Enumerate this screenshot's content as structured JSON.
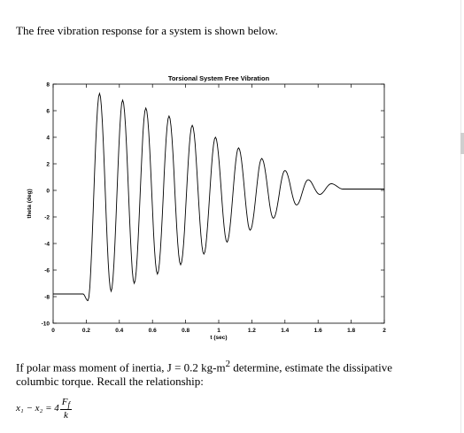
{
  "intro_text": "The free vibration response for a system is shown below.",
  "question": {
    "part1": "If polar mass moment of inertia, J = 0.2 kg-m",
    "sup": "2",
    "part2": " determine, estimate the dissipative columbic torque. Recall the relationship:"
  },
  "formula": {
    "lhs": "x₁ − x₂ = 4",
    "numerator": "F",
    "numerator_sub": "f",
    "denominator": "k"
  },
  "chart_data": {
    "type": "line",
    "title": "Torsional System Free Vibration",
    "xlabel": "t (sec)",
    "ylabel": "theta (deg)",
    "xlim": [
      0,
      2
    ],
    "ylim": [
      -10,
      8
    ],
    "xticks": [
      0,
      0.2,
      0.4,
      0.6,
      0.8,
      1,
      1.2,
      1.4,
      1.6,
      1.8,
      2
    ],
    "yticks": [
      -10,
      -8,
      -6,
      -4,
      -2,
      0,
      2,
      4,
      6,
      8
    ],
    "xtick_labels": [
      "0",
      "0.2",
      "0.4",
      "0.6",
      "0.8",
      "1",
      "1.2",
      "1.4",
      "1.6",
      "1.8",
      "2"
    ],
    "ytick_labels": [
      "-10",
      "-8",
      "-6",
      "-4",
      "-2",
      "0",
      "2",
      "4",
      "6",
      "8"
    ],
    "grid": false,
    "series": [
      {
        "color": "#000000",
        "x": [
          0,
          0.18,
          0.21,
          0.28,
          0.35,
          0.42,
          0.49,
          0.56,
          0.63,
          0.7,
          0.77,
          0.84,
          0.91,
          0.98,
          1.05,
          1.12,
          1.19,
          1.26,
          1.33,
          1.4,
          1.47,
          1.54,
          1.61,
          1.68,
          1.75,
          2.0
        ],
        "y": [
          -7.8,
          -7.8,
          -8.3,
          7.3,
          -7.6,
          6.8,
          -7.0,
          6.2,
          -6.3,
          5.6,
          -5.6,
          4.9,
          -4.8,
          4.0,
          -3.9,
          3.2,
          -3.0,
          2.4,
          -2.1,
          1.5,
          -1.1,
          0.8,
          -0.3,
          0.5,
          0.1,
          0.1
        ]
      }
    ]
  }
}
